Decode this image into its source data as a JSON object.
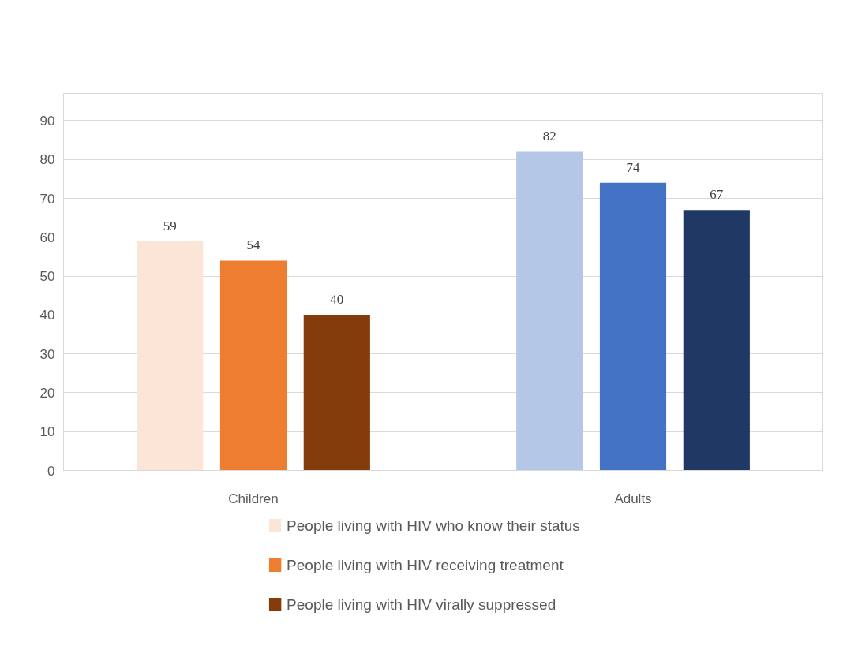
{
  "chart_data": {
    "type": "bar",
    "categories": [
      "Children",
      "Adults"
    ],
    "series": [
      {
        "name": "People living with HIV who know their status",
        "colors": [
          "#fbe5d6",
          "#b4c7e7"
        ],
        "values": [
          59,
          82
        ]
      },
      {
        "name": "People living with HIV receiving treatment",
        "colors": [
          "#ed7d31",
          "#4472c4"
        ],
        "values": [
          54,
          74
        ]
      },
      {
        "name": "People living with HIV  virally suppressed",
        "colors": [
          "#843c0c",
          "#203864"
        ],
        "values": [
          40,
          67
        ]
      }
    ],
    "ylim": [
      0,
      97
    ],
    "yticks": [
      0,
      10,
      20,
      30,
      40,
      50,
      60,
      70,
      80,
      90
    ],
    "grid": "y",
    "legend": "bottom",
    "data_labels": true
  }
}
